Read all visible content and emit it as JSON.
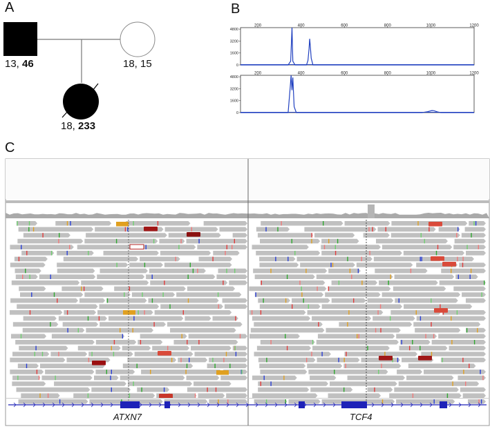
{
  "panels": {
    "a": "A",
    "b": "B",
    "c": "C"
  },
  "pedigree": {
    "father": {
      "sex": "male",
      "affected": true,
      "label_a": "13, ",
      "label_b": "46"
    },
    "mother": {
      "sex": "female",
      "affected": false,
      "label": "18, 15"
    },
    "child": {
      "sex": "female",
      "affected": true,
      "proband": true,
      "label_a": "18, ",
      "label_b": "233"
    }
  },
  "chart_data": [
    {
      "type": "line",
      "title": "",
      "xticks": [
        "200",
        "400",
        "600",
        "800",
        "1000",
        "1200"
      ],
      "yticks": [
        "4800",
        "3200",
        "1600",
        "0"
      ],
      "xlim": [
        120,
        1200
      ],
      "ylim": [
        0,
        5000
      ],
      "color": "#1f3fbf",
      "series": [
        {
          "values": [
            [
              120,
              0
            ],
            [
              340,
              0
            ],
            [
              352,
              500
            ],
            [
              358,
              5000
            ],
            [
              362,
              500
            ],
            [
              372,
              0
            ],
            [
              425,
              0
            ],
            [
              432,
              600
            ],
            [
              437,
              2200
            ],
            [
              440,
              3500
            ],
            [
              443,
              2400
            ],
            [
              447,
              900
            ],
            [
              455,
              0
            ],
            [
              1200,
              0
            ]
          ]
        }
      ]
    },
    {
      "type": "line",
      "title": "",
      "xticks": [
        "200",
        "400",
        "600",
        "800",
        "1000",
        "1200"
      ],
      "yticks": [
        "4800",
        "3200",
        "1600",
        "0"
      ],
      "xlim": [
        120,
        1200
      ],
      "ylim": [
        0,
        5000
      ],
      "color": "#1f3fbf",
      "series": [
        {
          "values": [
            [
              120,
              0
            ],
            [
              340,
              0
            ],
            [
              350,
              3500
            ],
            [
              354,
              5000
            ],
            [
              358,
              3000
            ],
            [
              362,
              4700
            ],
            [
              368,
              800
            ],
            [
              378,
              0
            ],
            [
              960,
              0
            ],
            [
              985,
              120
            ],
            [
              1005,
              280
            ],
            [
              1015,
              250
            ],
            [
              1030,
              100
            ],
            [
              1045,
              0
            ],
            [
              1200,
              0
            ]
          ]
        }
      ]
    }
  ],
  "igv": {
    "genes": [
      "ATXN7",
      "TCF4"
    ],
    "read_color": "#c0c0c0",
    "coverage_color": "#aaaaaa",
    "gene_color": "#1e22b8"
  }
}
